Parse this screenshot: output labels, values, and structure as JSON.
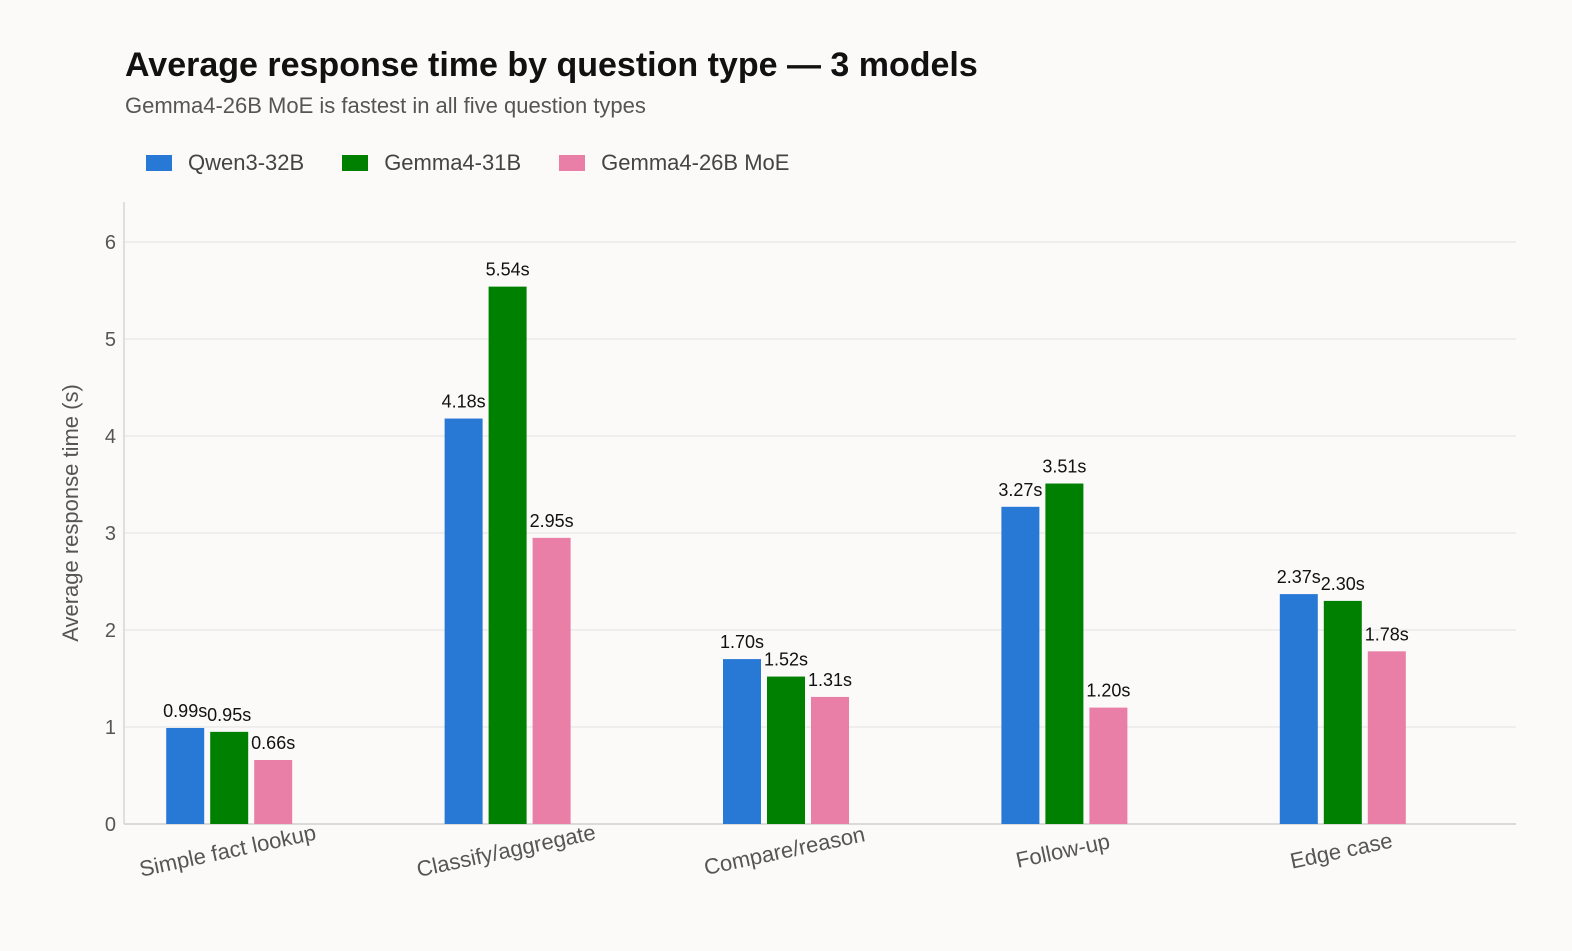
{
  "chart_data": {
    "type": "bar",
    "title": "Average response time by question type — 3 models",
    "subtitle": "Gemma4-26B MoE is fastest in all five question types",
    "xlabel": "",
    "ylabel": "Average response time (s)",
    "ylim": [
      0,
      6.4
    ],
    "yticks": [
      0,
      1,
      2,
      3,
      4,
      5,
      6
    ],
    "grid": true,
    "legend_position": "top-left",
    "value_suffix": "s",
    "categories": [
      "Simple fact lookup",
      "Classify/aggregate",
      "Compare/reason",
      "Follow-up",
      "Edge case"
    ],
    "series": [
      {
        "name": "Qwen3-32B",
        "color": "#2878d6",
        "values": [
          0.99,
          4.18,
          1.7,
          3.27,
          2.37
        ]
      },
      {
        "name": "Gemma4-31B",
        "color": "#008000",
        "values": [
          0.95,
          5.54,
          1.52,
          3.51,
          2.3
        ]
      },
      {
        "name": "Gemma4-26B MoE",
        "color": "#e97fa6",
        "values": [
          0.66,
          2.95,
          1.31,
          1.2,
          1.78
        ]
      }
    ]
  }
}
